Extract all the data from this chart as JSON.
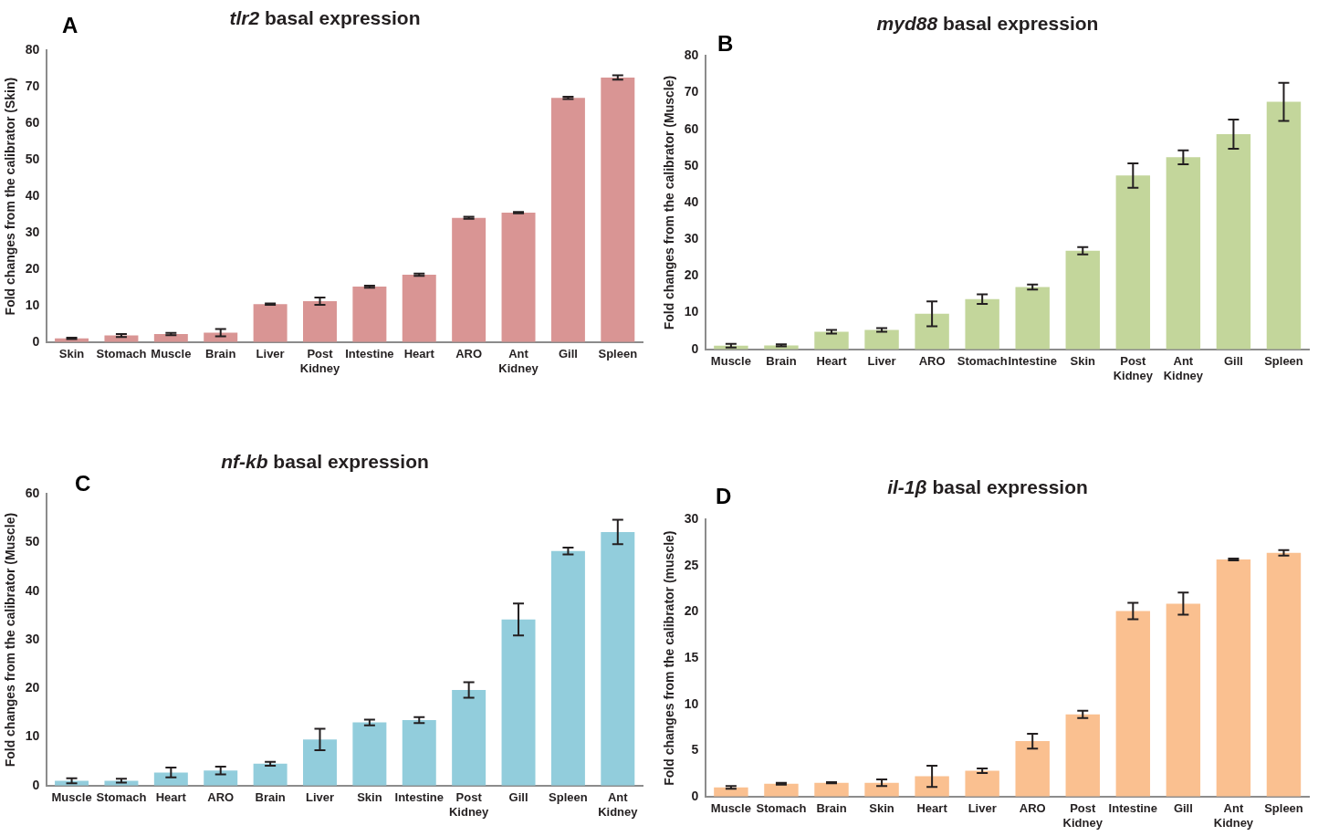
{
  "chart_data": [
    {
      "type": "bar",
      "title": "tlr2 basal expression",
      "ylabel": "Fold changes from the calibrator (Skin)",
      "annotations": [
        "A"
      ],
      "categories": [
        "Skin",
        "Stomach",
        "Muscle",
        "Brain",
        "Liver",
        "Post Kidney",
        "Intestine",
        "Heart",
        "ARO",
        "Ant Kidney",
        "Gill",
        "Spleen"
      ],
      "values": [
        1,
        1.8,
        2.2,
        2.6,
        10.4,
        11.2,
        15.2,
        18.5,
        34.1,
        35.5,
        67,
        72.6
      ],
      "errors": [
        0.2,
        0.4,
        0.3,
        1.0,
        0.2,
        1.0,
        0.3,
        0.3,
        0.3,
        0.2,
        0.3,
        0.6
      ],
      "color": "#d99594",
      "ylim": [
        0,
        80
      ],
      "yticks": [
        0,
        10,
        20,
        30,
        40,
        50,
        60,
        70,
        80
      ],
      "grid": false,
      "legend": false
    },
    {
      "type": "bar",
      "title": "myd88 basal expression",
      "ylabel": "Fold changes from the calibrator (Muscle)",
      "annotations": [
        "B"
      ],
      "categories": [
        "Muscle",
        "Brain",
        "Heart",
        "Liver",
        "ARO",
        "Stomach",
        "Intestine",
        "Skin",
        "Post Kidney",
        "Ant Kidney",
        "Gill",
        "Spleen"
      ],
      "values": [
        1,
        1.1,
        4.8,
        5.3,
        9.7,
        13.7,
        17,
        26.9,
        47.4,
        52.4,
        58.7,
        67.5
      ],
      "errors": [
        0.5,
        0.3,
        0.5,
        0.5,
        3.4,
        1.3,
        0.7,
        1.0,
        3.3,
        1.9,
        4,
        5.2
      ],
      "color": "#c3d69b",
      "ylim": [
        0,
        80
      ],
      "yticks": [
        0,
        10,
        20,
        30,
        40,
        50,
        60,
        70,
        80
      ],
      "grid": false,
      "legend": false
    },
    {
      "type": "bar",
      "title": "nf-kb basal expression",
      "ylabel": "Fold changes from the calibrator (Muscle)",
      "annotations": [
        "C"
      ],
      "categories": [
        "Muscle",
        "Stomach",
        "Heart",
        "ARO",
        "Brain",
        "Liver",
        "Skin",
        "Intestine",
        "Post Kidney",
        "Gill",
        "Spleen",
        "Ant Kidney"
      ],
      "values": [
        1,
        1,
        2.7,
        3.1,
        4.5,
        9.5,
        13,
        13.5,
        19.7,
        34.2,
        48.3,
        52.2
      ],
      "errors": [
        0.5,
        0.4,
        1.0,
        0.8,
        0.4,
        2.2,
        0.6,
        0.6,
        1.6,
        3.3,
        0.7,
        2.5
      ],
      "color": "#92cddc",
      "ylim": [
        0,
        60
      ],
      "yticks": [
        0,
        10,
        20,
        30,
        40,
        50,
        60
      ],
      "grid": false,
      "legend": false
    },
    {
      "type": "bar",
      "title": "il-1β basal expression",
      "ylabel": "Fold changes from the calibrator (muscle)",
      "annotations": [
        "D"
      ],
      "categories": [
        "Muscle",
        "Stomach",
        "Brain",
        "Skin",
        "Heart",
        "Liver",
        "ARO",
        "Post Kidney",
        "Intestine",
        "Gill",
        "Ant Kidney",
        "Spleen"
      ],
      "values": [
        1,
        1.4,
        1.5,
        1.5,
        2.2,
        2.8,
        6,
        8.9,
        20.1,
        20.9,
        25.7,
        26.4
      ],
      "errors": [
        0.15,
        0.1,
        0.05,
        0.35,
        1.15,
        0.25,
        0.8,
        0.4,
        0.9,
        1.2,
        0.1,
        0.3
      ],
      "color": "#fac090",
      "ylim": [
        0,
        30
      ],
      "yticks": [
        0,
        5,
        10,
        15,
        20,
        25,
        30
      ],
      "grid": false,
      "legend": false
    }
  ]
}
